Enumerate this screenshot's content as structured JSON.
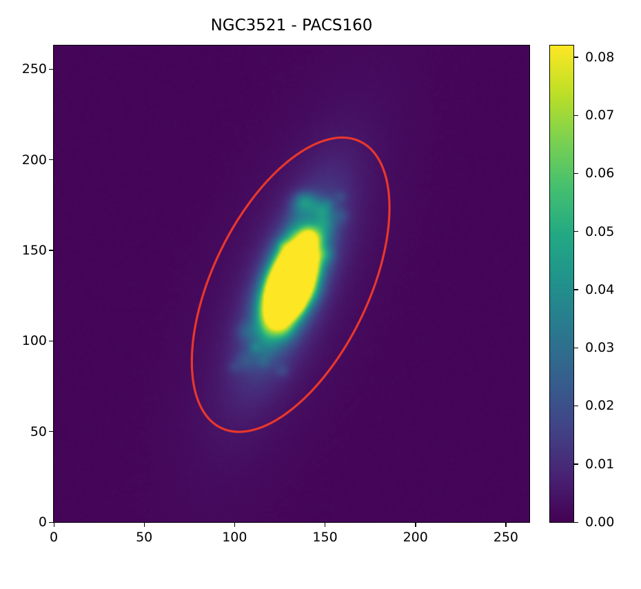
{
  "chart_data": {
    "type": "heatmap",
    "title": "NGC3521 - PACS160",
    "colormap": "viridis",
    "image_size": [
      263,
      263
    ],
    "xlim": [
      0,
      263
    ],
    "ylim": [
      0,
      263
    ],
    "origin": "lower",
    "x_ticks": [
      "0",
      "50",
      "100",
      "150",
      "200",
      "250"
    ],
    "x_tick_values": [
      0,
      50,
      100,
      150,
      200,
      250
    ],
    "y_ticks": [
      "0",
      "50",
      "100",
      "150",
      "200",
      "250"
    ],
    "y_tick_values": [
      0,
      50,
      100,
      150,
      200,
      250
    ],
    "colorbar": {
      "vmin": 0.0,
      "vmax": 0.082,
      "ticks": [
        "0.00",
        "0.01",
        "0.02",
        "0.03",
        "0.04",
        "0.05",
        "0.06",
        "0.07",
        "0.08"
      ],
      "tick_values": [
        0,
        0.01,
        0.02,
        0.03,
        0.04,
        0.05,
        0.06,
        0.07,
        0.08
      ]
    },
    "source": {
      "center": [
        131,
        132
      ],
      "core_peak_saturated": true,
      "position_angle_deg_from_x": 68
    },
    "aperture_ellipse": {
      "center": [
        131,
        131
      ],
      "semi_major": 88,
      "semi_minor": 43,
      "angle_deg_from_x": 64,
      "color": "#e8372b"
    },
    "grid": false
  }
}
